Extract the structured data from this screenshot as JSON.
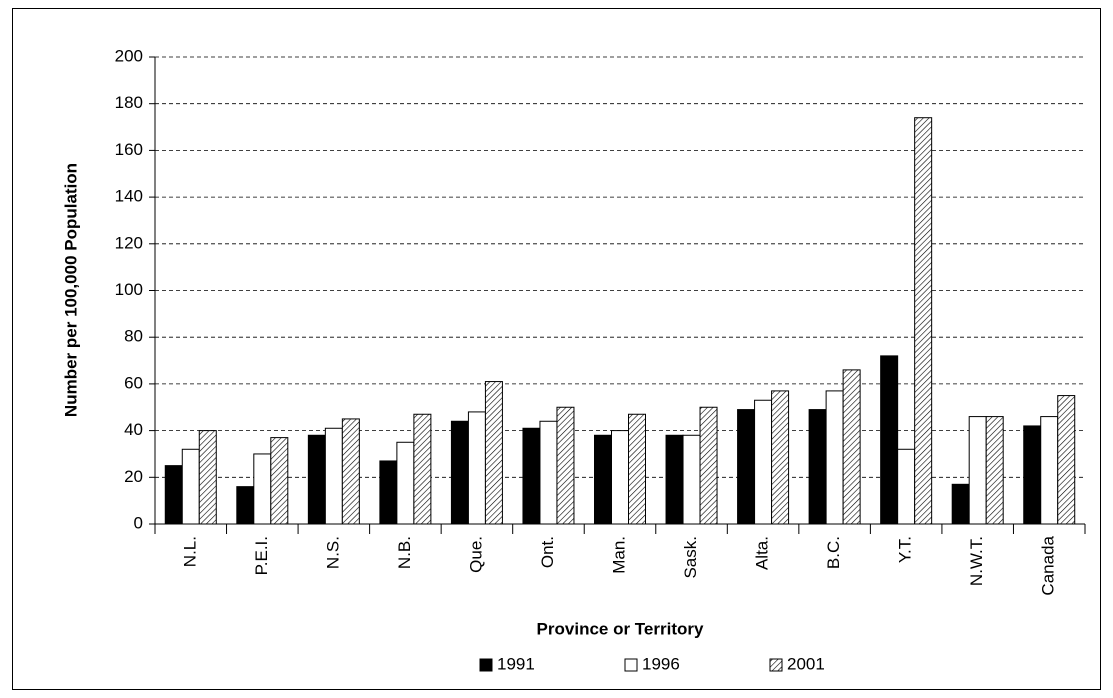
{
  "chart_data": {
    "type": "bar",
    "x_label": "Province or Territory",
    "y_label": "Number per 100,000 Population",
    "categories": [
      "N.L.",
      "P.E.I.",
      "N.S.",
      "N.B.",
      "Que.",
      "Ont.",
      "Man.",
      "Sask.",
      "Alta.",
      "B.C.",
      "Y.T.",
      "N.W.T.",
      "Canada"
    ],
    "series": [
      {
        "name": "1991",
        "color": "#000000",
        "values": [
          25,
          16,
          38,
          27,
          44,
          41,
          38,
          38,
          49,
          49,
          72,
          17,
          42
        ]
      },
      {
        "name": "1996",
        "color": "#ffffff",
        "values": [
          32,
          30,
          41,
          35,
          48,
          44,
          40,
          38,
          53,
          57,
          32,
          46,
          46
        ]
      },
      {
        "name": "2001",
        "color": "#ffffff",
        "fill": "hatch",
        "values": [
          40,
          37,
          45,
          47,
          61,
          50,
          47,
          50,
          57,
          66,
          174,
          46,
          55
        ]
      }
    ],
    "ylim": [
      0,
      200
    ],
    "yticks": [
      0,
      20,
      40,
      60,
      80,
      100,
      120,
      140,
      160,
      180,
      200
    ],
    "grid": true,
    "legend": "bottom"
  }
}
